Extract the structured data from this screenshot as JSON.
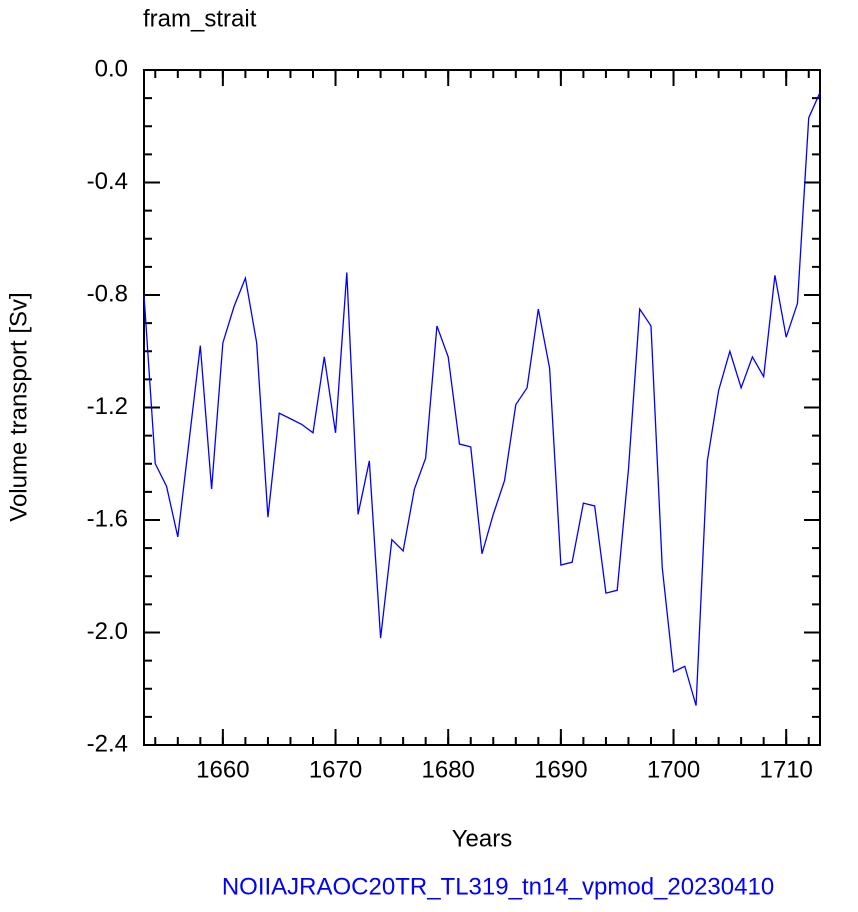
{
  "chart_data": {
    "type": "line",
    "title": "fram_strait",
    "x_label": "Years",
    "y_label": "Volume transport [Sv]",
    "caption": "NOIIAJRAOC20TR_TL319_tn14_vpmod_20230410",
    "x": [
      1653,
      1654,
      1655,
      1656,
      1657,
      1658,
      1659,
      1660,
      1661,
      1662,
      1663,
      1664,
      1665,
      1666,
      1667,
      1668,
      1669,
      1670,
      1671,
      1672,
      1673,
      1674,
      1675,
      1676,
      1677,
      1678,
      1679,
      1680,
      1681,
      1682,
      1683,
      1684,
      1685,
      1686,
      1687,
      1688,
      1689,
      1690,
      1691,
      1692,
      1693,
      1694,
      1695,
      1696,
      1697,
      1698,
      1699,
      1700,
      1701,
      1702,
      1703,
      1704,
      1705,
      1706,
      1707,
      1708,
      1709,
      1710,
      1711,
      1712,
      1713
    ],
    "series": [
      {
        "color": "#0000ff",
        "values": [
          -0.8,
          -1.4,
          -1.48,
          -1.66,
          -1.32,
          -0.98,
          -1.49,
          -0.97,
          -0.84,
          -0.74,
          -0.97,
          -1.59,
          -1.22,
          -1.24,
          -1.26,
          -1.29,
          -1.02,
          -1.29,
          -0.72,
          -1.58,
          -1.39,
          -2.02,
          -1.67,
          -1.71,
          -1.49,
          -1.38,
          -0.91,
          -1.02,
          -1.33,
          -1.34,
          -1.72,
          -1.58,
          -1.46,
          -1.19,
          -1.13,
          -0.85,
          -1.06,
          -1.76,
          -1.75,
          -1.54,
          -1.55,
          -1.86,
          -1.85,
          -1.42,
          -0.85,
          -0.91,
          -1.77,
          -2.14,
          -2.12,
          -2.26,
          -1.39,
          -1.14,
          -1.0,
          -1.13,
          -1.02,
          -1.09,
          -0.73,
          -0.95,
          -0.83,
          -0.17,
          -0.08
        ]
      }
    ],
    "xlim": [
      1653,
      1713
    ],
    "xticks": [
      1660,
      1670,
      1680,
      1690,
      1700,
      1710
    ],
    "ylim": [
      -2.4,
      0
    ],
    "yticks": [
      -2.4,
      {
        "value": -2,
        "label": "-2.0"
      },
      -1.6,
      -1.2,
      -0.8,
      -0.4,
      {
        "value": 0,
        "label": "0.0"
      }
    ]
  }
}
